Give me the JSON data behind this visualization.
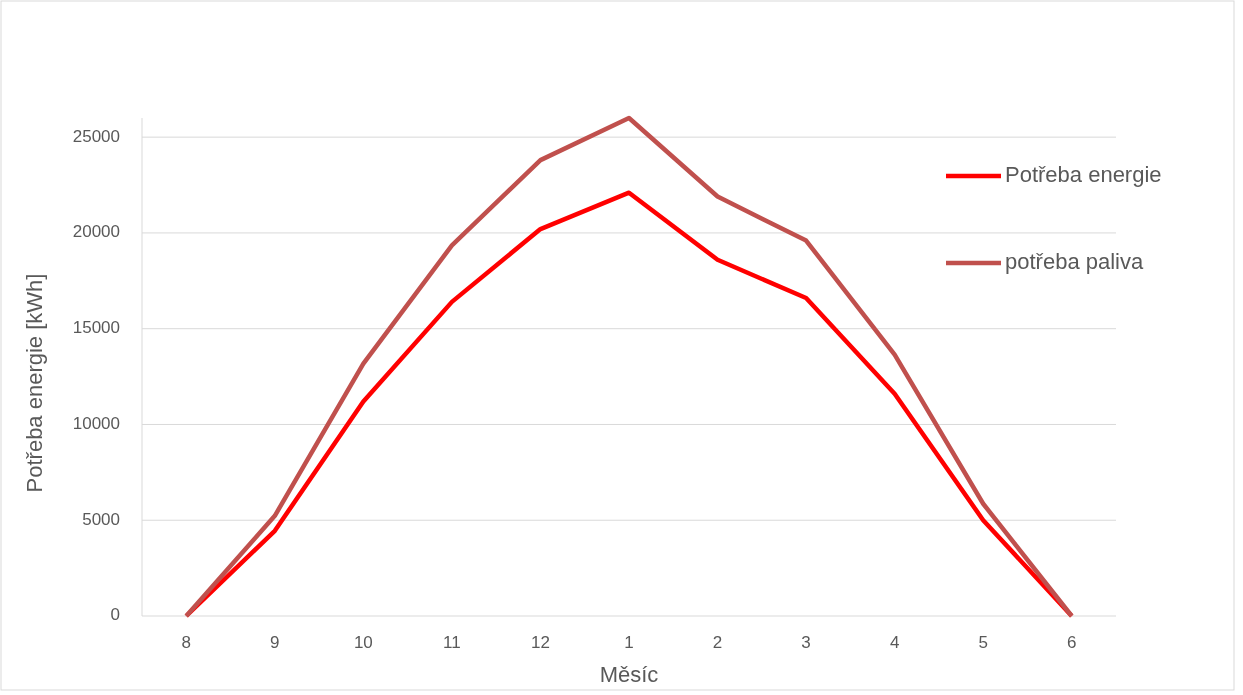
{
  "chart_data": {
    "type": "line",
    "xlabel": "Měsíc",
    "ylabel": "Potřeba energie [kWh]",
    "categories": [
      "8",
      "9",
      "10",
      "11",
      "12",
      "1",
      "2",
      "3",
      "4",
      "5",
      "6"
    ],
    "series": [
      {
        "name": "Potřeba energie",
        "color": "#ff0000",
        "values": [
          0,
          4450,
          11200,
          16400,
          20200,
          22100,
          18600,
          16600,
          11600,
          5000,
          0
        ]
      },
      {
        "name": "potřeba paliva",
        "color": "#c0504d",
        "values": [
          0,
          5230,
          13180,
          19350,
          23800,
          26000,
          21900,
          19600,
          13650,
          5860,
          0
        ]
      }
    ],
    "ylim": [
      0,
      26000
    ],
    "yticks": [
      0,
      5000,
      10000,
      15000,
      20000,
      25000
    ],
    "grid": "y",
    "legend": "right",
    "marker": "none",
    "line_style": "solid"
  }
}
